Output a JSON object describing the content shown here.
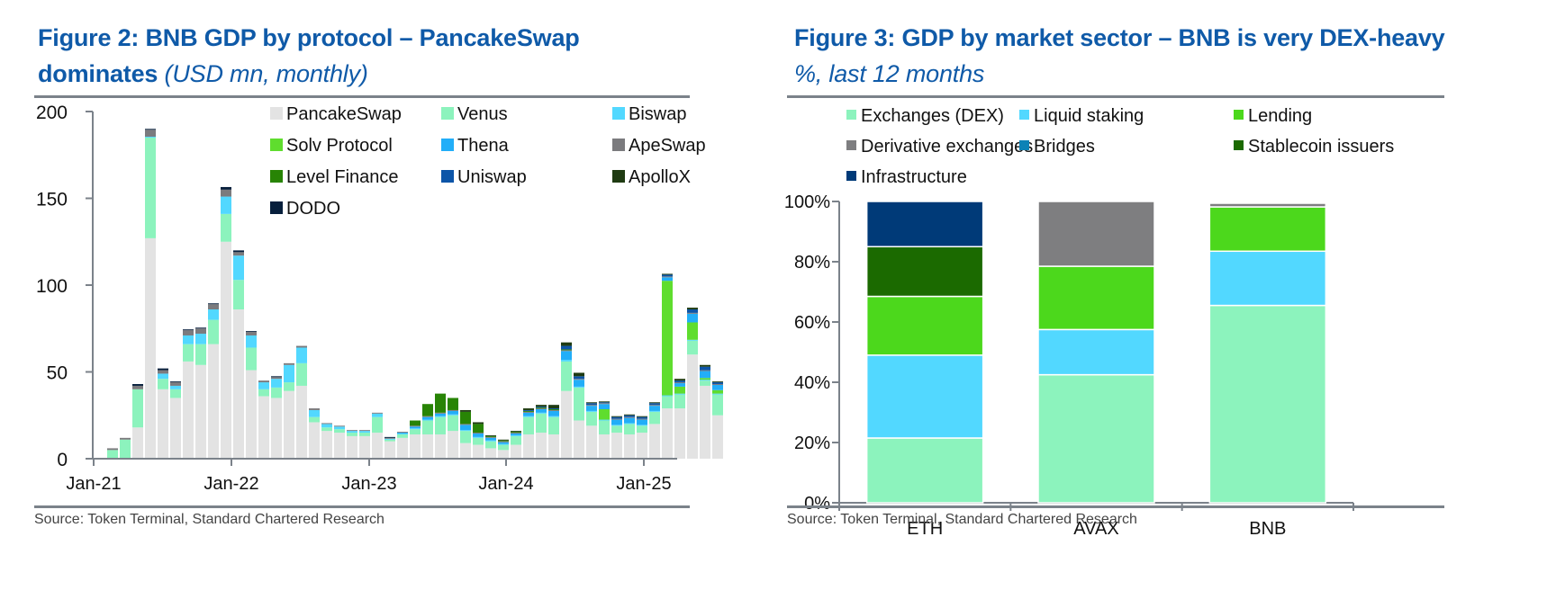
{
  "left": {
    "title_bold": "Figure 2: BNB GDP by protocol – PancakeSwap",
    "title_bold_2": "dominates",
    "title_italic": "(USD mn, monthly)",
    "source": "Source: Token Terminal, Standard Chartered Research"
  },
  "right": {
    "title_bold": "Figure 3: GDP by market sector – BNB is very DEX-heavy",
    "title_italic": "%, last 12 months",
    "source": "Source: Token Terminal, Standard Chartered Research"
  },
  "chart_data": [
    {
      "type": "bar",
      "stacked": true,
      "title": "BNB GDP by protocol – PancakeSwap dominates",
      "ylabel": "USD mn, monthly",
      "xlabel": "",
      "ylim": [
        0,
        200
      ],
      "yticks": [
        0,
        50,
        100,
        150,
        200
      ],
      "xtick_labels": [
        "Jan-21",
        "Jan-22",
        "Jan-23",
        "Jan-24",
        "Jan-25"
      ],
      "xtick_bar_index": [
        0,
        11,
        22,
        33,
        44
      ],
      "legend_position": "top-right",
      "grid": false,
      "series": [
        {
          "name": "PancakeSwap",
          "color": "#e3e3e3",
          "values": [
            0,
            0,
            0,
            18,
            127,
            40,
            35,
            56,
            54,
            66,
            125,
            86,
            51,
            36,
            35,
            39,
            42,
            21,
            16,
            15,
            13,
            13,
            15,
            10,
            12,
            14,
            14,
            14,
            16,
            9,
            8,
            6,
            5,
            8,
            14,
            15,
            14,
            39,
            22,
            19,
            14,
            15,
            14,
            15,
            20,
            29,
            29,
            60,
            42,
            25
          ]
        },
        {
          "name": "Venus",
          "color": "#8cf3bd",
          "values": [
            0,
            5,
            11,
            22,
            58,
            6,
            5,
            10,
            12,
            14,
            16,
            17,
            13,
            4,
            6,
            5,
            13,
            3,
            2,
            2,
            2,
            2,
            9,
            1,
            2,
            3,
            8,
            10,
            9,
            7,
            4,
            4,
            3,
            5,
            10,
            11,
            10,
            17,
            19,
            8,
            8,
            4,
            6,
            4,
            7,
            7,
            8,
            8,
            3,
            12
          ]
        },
        {
          "name": "Biswap",
          "color": "#52d8ff",
          "values": [
            0,
            0,
            0,
            0,
            0.5,
            3,
            2,
            5,
            6,
            6,
            10,
            14,
            7,
            4,
            5,
            10,
            9,
            4,
            2,
            1.5,
            1,
            1,
            2,
            0.5,
            0.5,
            0.5,
            0.5,
            0.5,
            0.5,
            0.5,
            0.5,
            0.5,
            0.5,
            0.5,
            0.5,
            0.5,
            0.5,
            1,
            0.5,
            0.5,
            0.5,
            0.5,
            0.5,
            0.5,
            0.5,
            0.5,
            0.5,
            0.5,
            0.5,
            0.5
          ]
        },
        {
          "name": "Solv Protocol",
          "color": "#5fdd2e",
          "values": [
            0,
            0,
            0,
            0,
            0,
            0,
            0,
            0,
            0,
            0,
            0,
            0,
            0,
            0,
            0,
            0,
            0,
            0,
            0,
            0,
            0,
            0,
            0,
            0,
            0,
            0,
            0,
            0,
            0,
            0,
            0,
            0,
            0,
            0,
            0,
            0,
            0,
            0,
            0,
            0,
            6,
            0,
            0,
            0,
            0,
            66,
            4,
            10,
            1,
            2
          ]
        },
        {
          "name": "Thena",
          "color": "#22aef8",
          "values": [
            0,
            0,
            0,
            0,
            0,
            0,
            0,
            0,
            0,
            0,
            0,
            0,
            0,
            0,
            0,
            0,
            0,
            0,
            0,
            0,
            0,
            0,
            0,
            0,
            0.5,
            1,
            1.5,
            1.5,
            2,
            3,
            2,
            1.5,
            1,
            1,
            2,
            2,
            3,
            5,
            4,
            3,
            3,
            3,
            3,
            3,
            3,
            2,
            2,
            5,
            4,
            3
          ]
        },
        {
          "name": "ApeSwap",
          "color": "#7b7b7e",
          "values": [
            0,
            1,
            1,
            2,
            4,
            2,
            2,
            3,
            3,
            3,
            4,
            2,
            2,
            1,
            1,
            1,
            1,
            1,
            0.5,
            0.5,
            0.5,
            0.5,
            0.5,
            0.5,
            0.5,
            0.5,
            0.5,
            0.5,
            0.5,
            0.5,
            0.5,
            0.5,
            0.5,
            0.5,
            0.5,
            0.5,
            0.5,
            0.5,
            0.5,
            0.5,
            0.5,
            0.5,
            0.5,
            0.5,
            0.5,
            0.5,
            0.5,
            0.5,
            0.5,
            0.5
          ]
        },
        {
          "name": "Level Finance",
          "color": "#288405",
          "values": [
            0,
            0,
            0,
            0,
            0,
            0,
            0,
            0,
            0,
            0,
            0,
            0,
            0,
            0,
            0,
            0,
            0,
            0,
            0,
            0,
            0,
            0,
            0,
            0,
            0,
            3,
            7,
            11,
            7,
            7,
            5,
            0.5,
            0.5,
            0.5,
            0.5,
            0.5,
            0.5,
            0.5,
            0,
            0,
            0,
            0,
            0,
            0,
            0,
            0,
            0,
            0,
            0,
            0
          ]
        },
        {
          "name": "Uniswap",
          "color": "#0c55a8",
          "values": [
            0,
            0,
            0,
            0,
            0,
            0,
            0,
            0,
            0,
            0,
            0,
            0,
            0,
            0,
            0,
            0,
            0,
            0,
            0,
            0,
            0,
            0,
            0,
            0,
            0,
            0,
            0,
            0,
            0,
            0,
            0,
            0,
            0,
            0,
            0.5,
            0.5,
            0.5,
            2,
            1.5,
            1,
            0.5,
            1,
            1,
            1,
            1,
            1,
            1,
            2,
            2,
            1
          ]
        },
        {
          "name": "ApolloX",
          "color": "#1f3b12",
          "values": [
            0,
            0,
            0,
            0,
            0,
            0,
            0,
            0,
            0,
            0,
            0,
            0,
            0,
            0,
            0,
            0,
            0,
            0,
            0,
            0,
            0,
            0,
            0,
            0,
            0,
            0,
            0,
            0,
            0,
            1,
            1,
            0.5,
            0.5,
            0.5,
            1,
            1,
            2,
            2,
            2,
            0.5,
            0.5,
            0.5,
            0.5,
            0.5,
            0.5,
            0.5,
            1,
            1,
            1,
            0.5
          ]
        },
        {
          "name": "DODO",
          "color": "#071f3c",
          "values": [
            0,
            0,
            0,
            1,
            0.5,
            1,
            0.5,
            0.5,
            0.5,
            0.5,
            1.5,
            1,
            0.5,
            0,
            0.5,
            0,
            0,
            0,
            0,
            0,
            0,
            0,
            0,
            0.5,
            0,
            0,
            0,
            0,
            0,
            0,
            0,
            0,
            0,
            0,
            0,
            0,
            0,
            0,
            0,
            0,
            0,
            0,
            0,
            0,
            0,
            0,
            0,
            0,
            0,
            0
          ]
        }
      ]
    },
    {
      "type": "bar",
      "stacked": true,
      "title": "GDP by market sector – BNB is very DEX-heavy",
      "ylabel": "%, last 12 months",
      "xlabel": "",
      "ylim": [
        0,
        100
      ],
      "yticks": [
        0,
        20,
        40,
        60,
        80,
        100
      ],
      "ytick_suffix": "%",
      "categories": [
        "ETH",
        "AVAX",
        "BNB"
      ],
      "legend_position": "top",
      "grid": false,
      "series": [
        {
          "name": "Exchanges (DEX)",
          "color": "#8cf3bd",
          "values": [
            21.5,
            42.5,
            65.5
          ]
        },
        {
          "name": "Liquid staking",
          "color": "#52d8ff",
          "values": [
            27.5,
            15.0,
            18.0
          ]
        },
        {
          "name": "Lending",
          "color": "#4cd81c",
          "values": [
            19.5,
            21.0,
            14.7
          ]
        },
        {
          "name": "Derivative exchanges",
          "color": "#7e7e80",
          "values": [
            0,
            21.5,
            1.2
          ]
        },
        {
          "name": "Bridges",
          "color": "#0d82b6",
          "values": [
            0,
            0,
            0
          ]
        },
        {
          "name": "Stablecoin issuers",
          "color": "#1b6a00",
          "values": [
            16.5,
            0,
            0
          ]
        },
        {
          "name": "Infrastructure",
          "color": "#003a78",
          "values": [
            15.0,
            0,
            0
          ]
        }
      ]
    }
  ]
}
